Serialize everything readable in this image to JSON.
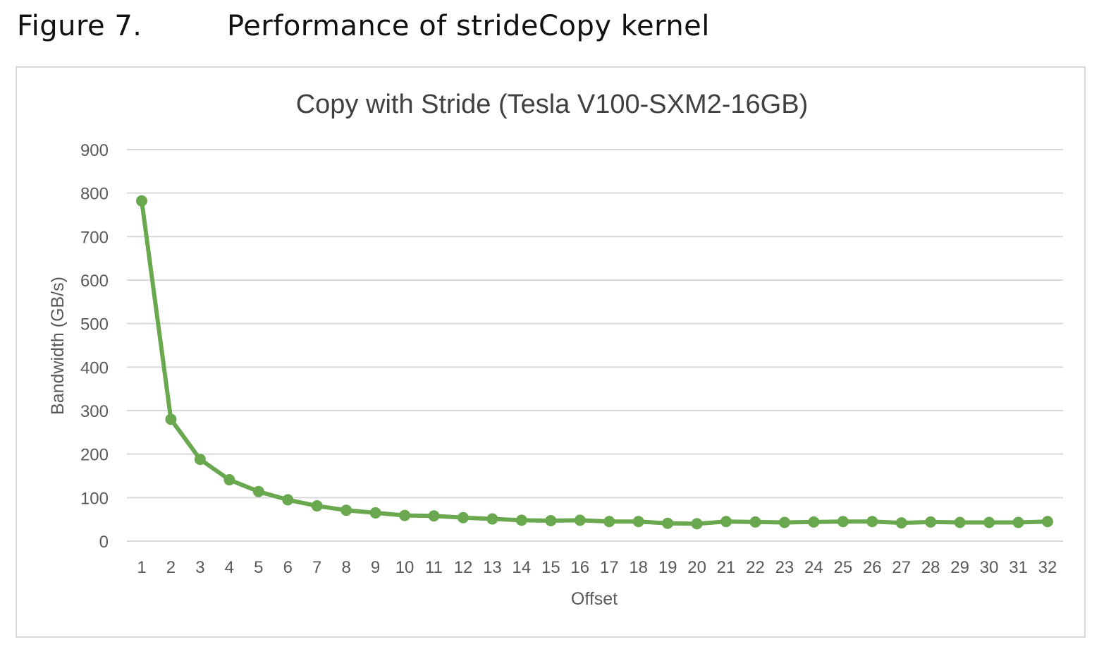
{
  "caption": {
    "number": "Figure 7.",
    "title": "Performance of strideCopy kernel"
  },
  "colors": {
    "series": "#6aa84f",
    "grid": "#d9d9d9",
    "text": "#595959",
    "title": "#404040"
  },
  "chart_data": {
    "type": "line",
    "title": "Copy with Stride (Tesla V100-SXM2-16GB)",
    "xlabel": "Offset",
    "ylabel": "Bandwidth (GB/s)",
    "ylim": [
      0,
      900
    ],
    "yticks": [
      0,
      100,
      200,
      300,
      400,
      500,
      600,
      700,
      800,
      900
    ],
    "grid": true,
    "legend": "none",
    "x": [
      "1",
      "2",
      "3",
      "4",
      "5",
      "6",
      "7",
      "8",
      "9",
      "10",
      "11",
      "12",
      "13",
      "14",
      "15",
      "16",
      "17",
      "18",
      "19",
      "20",
      "21",
      "22",
      "23",
      "24",
      "25",
      "26",
      "27",
      "28",
      "29",
      "30",
      "31",
      "32"
    ],
    "series": [
      {
        "values": [
          782,
          280,
          188,
          141,
          114,
          95,
          81,
          71,
          65,
          59,
          58,
          54,
          51,
          48,
          47,
          48,
          45,
          45,
          41,
          40,
          45,
          44,
          43,
          44,
          45,
          45,
          42,
          44,
          43,
          43,
          43,
          45
        ]
      }
    ]
  }
}
